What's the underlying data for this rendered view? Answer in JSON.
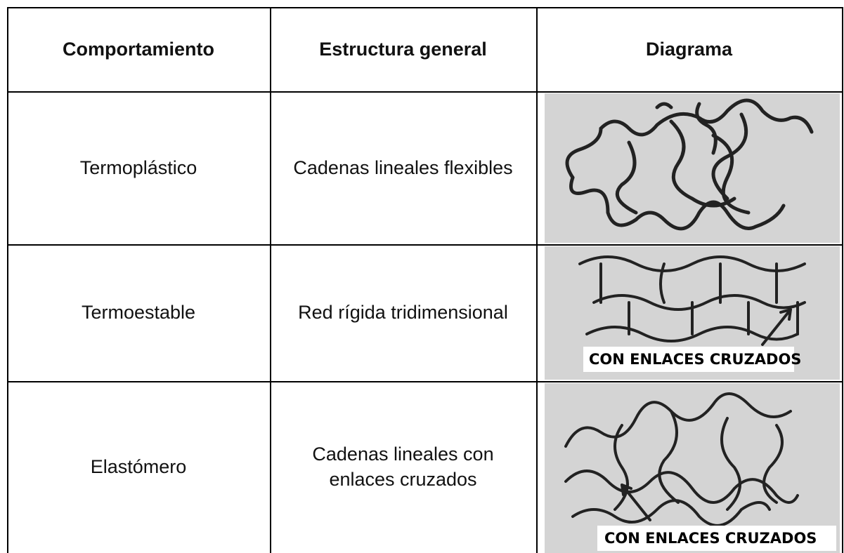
{
  "table": {
    "header": [
      "Comportamiento",
      "Estructura general",
      "Diagrama"
    ],
    "rows": [
      {
        "behavior": "Termoplástico",
        "structure": "Cadenas lineales flexibles"
      },
      {
        "behavior": "Termoestable",
        "structure": "Red rígida tridimensional",
        "diagram_label": "CON ENLACES CRUZADOS"
      },
      {
        "behavior": "Elastómero",
        "structure": "Cadenas lineales con enlaces cruzados",
        "diagram_label": "CON ENLACES CRUZADOS"
      }
    ]
  }
}
